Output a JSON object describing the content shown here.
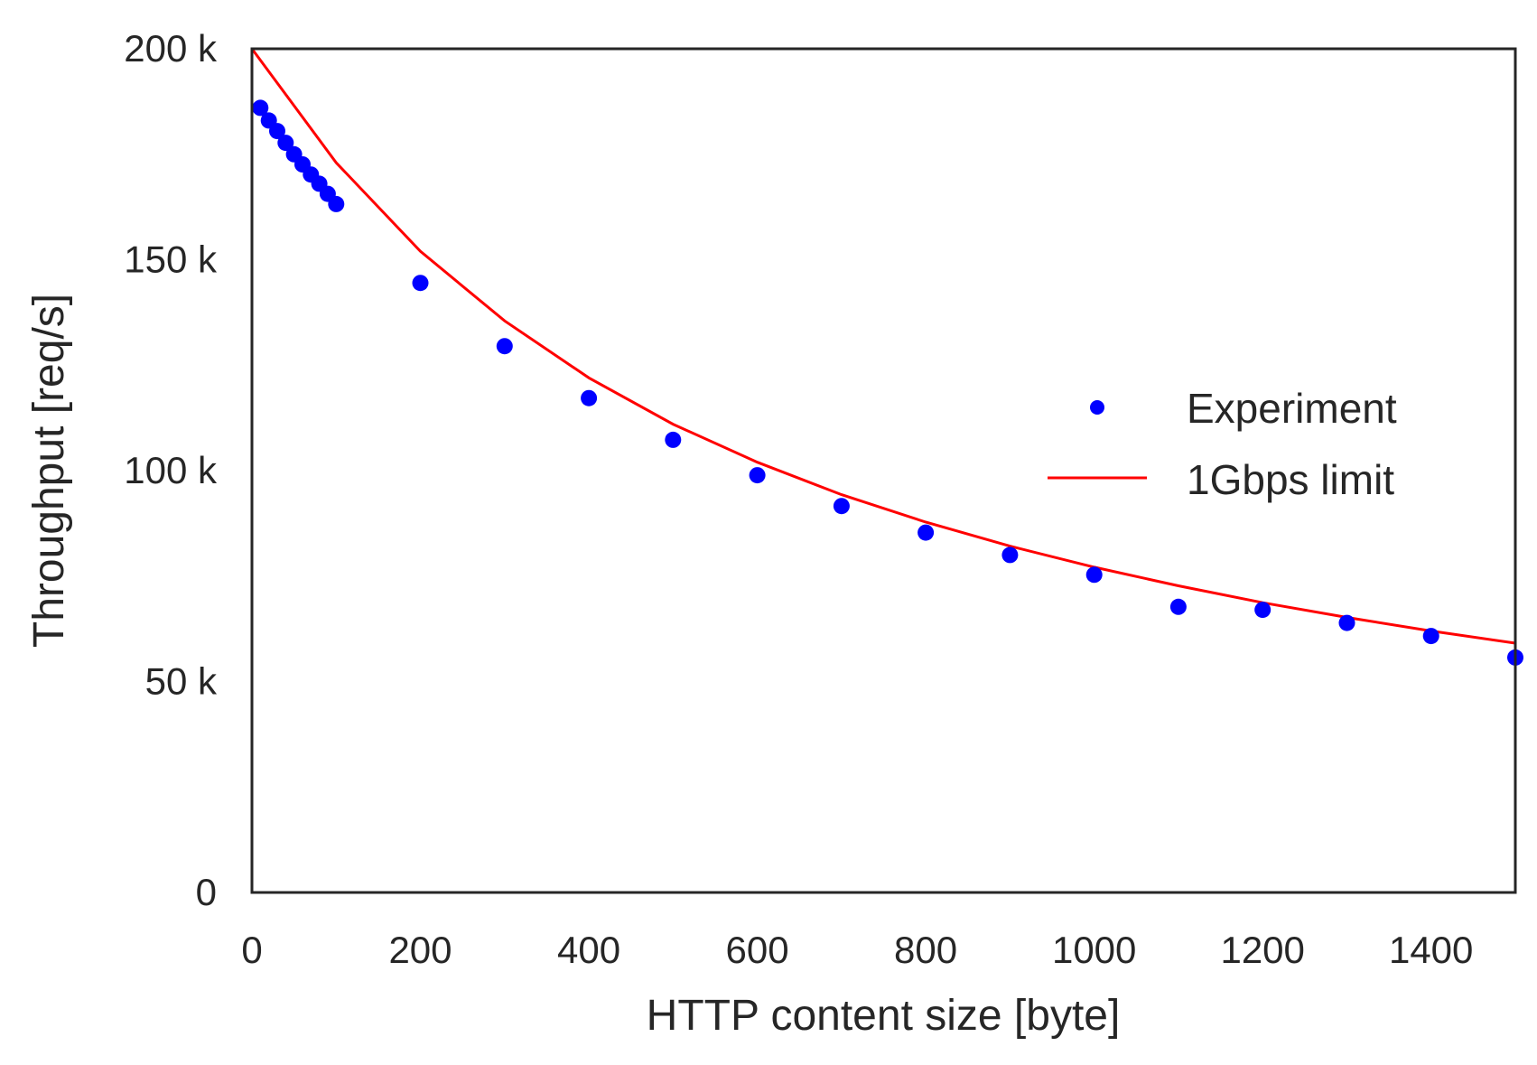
{
  "chart_data": {
    "type": "scatter",
    "title": "",
    "xlabel": "HTTP content size [byte]",
    "ylabel": "Throughput [req/s]",
    "xlim": [
      0,
      1500
    ],
    "ylim": [
      0,
      200000
    ],
    "x_ticks": [
      0,
      200,
      400,
      600,
      800,
      1000,
      1200,
      1400
    ],
    "x_tick_labels": [
      "0",
      "200",
      "400",
      "600",
      "800",
      "1000",
      "1200",
      "1400"
    ],
    "y_ticks": [
      0,
      50000,
      100000,
      150000,
      200000
    ],
    "y_tick_labels": [
      "0",
      "50 k",
      "100 k",
      "150 k",
      "200 k"
    ],
    "grid": false,
    "legend_position": "right",
    "series": [
      {
        "name": "Experiment",
        "kind": "scatter",
        "color": "#0000ff",
        "x": [
          10,
          20,
          30,
          40,
          50,
          60,
          70,
          80,
          90,
          100,
          200,
          300,
          400,
          500,
          600,
          700,
          800,
          900,
          1000,
          1100,
          1200,
          1300,
          1400,
          1500
        ],
        "y": [
          186000,
          183000,
          180500,
          177700,
          175000,
          172600,
          170200,
          168000,
          165600,
          163200,
          144500,
          129500,
          117200,
          107300,
          98900,
          91600,
          85300,
          80000,
          75300,
          67700,
          67000,
          63900,
          60800,
          55700
        ]
      },
      {
        "name": "1Gbps limit",
        "kind": "line",
        "color": "#ff0000",
        "x": [
          0,
          100,
          200,
          300,
          400,
          500,
          600,
          700,
          800,
          900,
          1000,
          1100,
          1200,
          1300,
          1400,
          1500
        ],
        "y": [
          200000,
          173000,
          152000,
          135500,
          122000,
          111000,
          102000,
          94300,
          87800,
          82100,
          77100,
          72700,
          68700,
          65200,
          62000,
          59100
        ]
      }
    ]
  }
}
